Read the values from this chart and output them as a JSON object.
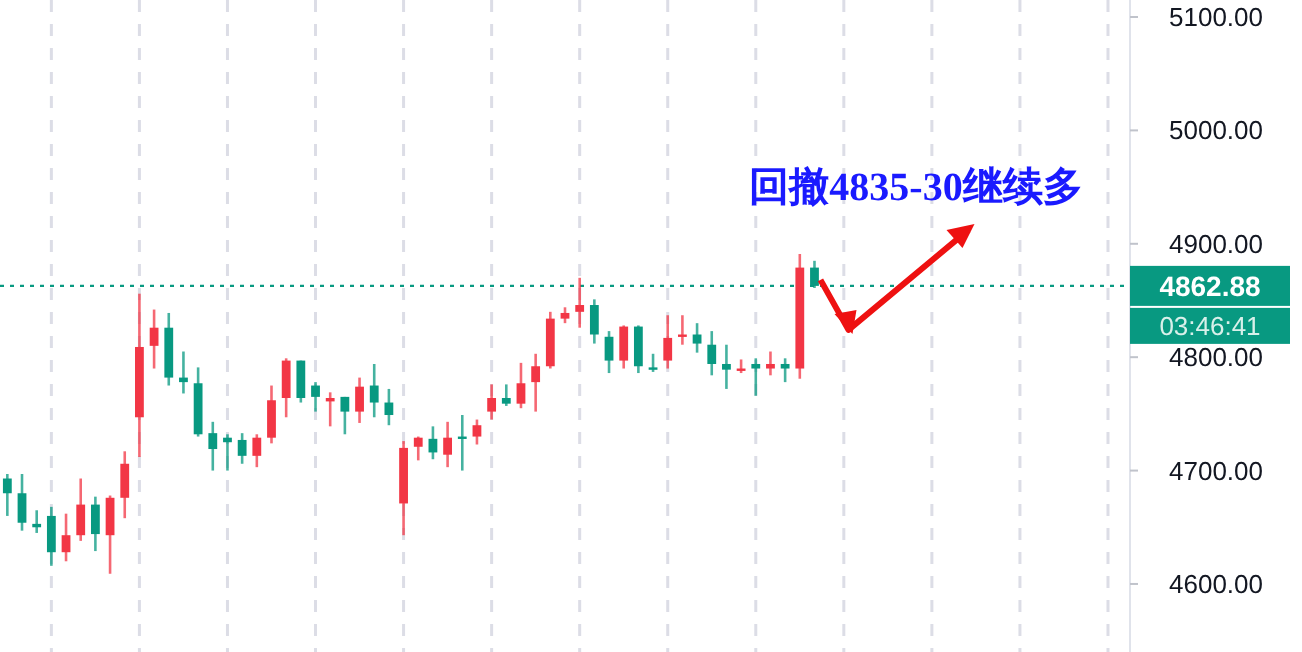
{
  "chart_data": {
    "type": "candlestick",
    "categories": [
      null,
      null,
      null,
      null,
      null,
      null,
      null,
      null,
      null,
      null,
      null,
      null,
      null,
      null,
      null,
      null,
      null,
      null,
      null,
      null,
      null,
      null,
      null,
      null,
      null,
      null,
      null,
      null,
      null,
      null,
      null,
      null,
      null,
      null,
      null,
      null,
      null,
      null,
      null,
      null,
      null,
      null,
      null,
      null,
      null,
      null,
      null,
      null,
      null,
      null,
      null,
      null,
      null,
      null,
      null,
      null,
      null,
      null,
      null,
      null,
      null,
      null,
      null,
      null,
      null,
      null,
      null,
      null,
      null,
      null,
      null,
      null,
      null,
      null,
      null,
      null,
      null
    ],
    "ohlc": [
      [
        4693,
        4697,
        4660,
        4680
      ],
      [
        4680,
        4697,
        4647,
        4654
      ],
      [
        4653,
        4665,
        4645,
        4650
      ],
      [
        4660,
        4668,
        4616,
        4628
      ],
      [
        4628,
        4662,
        4620,
        4643
      ],
      [
        4643,
        4693,
        4638,
        4670
      ],
      [
        4670,
        4677,
        4629,
        4644
      ],
      [
        4643,
        4678,
        4609,
        4676
      ],
      [
        4676,
        4717,
        4658,
        4706
      ],
      [
        4747,
        4856,
        4712,
        4809
      ],
      [
        4810,
        4842,
        4790,
        4826
      ],
      [
        4826,
        4839,
        4775,
        4782
      ],
      [
        4782,
        4805,
        4768,
        4778
      ],
      [
        4777,
        4791,
        4730,
        4732
      ],
      [
        4733,
        4743,
        4700,
        4719
      ],
      [
        4729,
        4732,
        4700,
        4725
      ],
      [
        4727,
        4733,
        4706,
        4713
      ],
      [
        4713,
        4732,
        4703,
        4729
      ],
      [
        4729,
        4775,
        4724,
        4762
      ],
      [
        4764,
        4799,
        4747,
        4797
      ],
      [
        4797,
        4797,
        4760,
        4764
      ],
      [
        4775,
        4778,
        4752,
        4765
      ],
      [
        4761,
        4769,
        4739,
        4764
      ],
      [
        4765,
        4765,
        4732,
        4752
      ],
      [
        4752,
        4782,
        4742,
        4774
      ],
      [
        4775,
        4794,
        4747,
        4760
      ],
      [
        4760,
        4772,
        4740,
        4749
      ],
      [
        4671,
        4726,
        4643,
        4720
      ],
      [
        4721,
        4730,
        4709,
        4729
      ],
      [
        4728,
        4739,
        4710,
        4716
      ],
      [
        4714,
        4743,
        4703,
        4729
      ],
      [
        4730,
        4749,
        4700,
        4728
      ],
      [
        4730,
        4745,
        4723,
        4740
      ],
      [
        4752,
        4776,
        4745,
        4764
      ],
      [
        4764,
        4776,
        4757,
        4759
      ],
      [
        4759,
        4795,
        4755,
        4777
      ],
      [
        4778,
        4803,
        4752,
        4792
      ],
      [
        4792,
        4840,
        4790,
        4834
      ],
      [
        4834,
        4844,
        4830,
        4839
      ],
      [
        4840,
        4870,
        4826,
        4846
      ],
      [
        4846,
        4851,
        4812,
        4820
      ],
      [
        4818,
        4823,
        4786,
        4797
      ],
      [
        4797,
        4828,
        4790,
        4827
      ],
      [
        4827,
        4828,
        4786,
        4792
      ],
      [
        4791,
        4803,
        4787,
        4789
      ],
      [
        4797,
        4837,
        4790,
        4817
      ],
      [
        4818,
        4837,
        4811,
        4820
      ],
      [
        4820,
        4830,
        4804,
        4812
      ],
      [
        4811,
        4823,
        4784,
        4794
      ],
      [
        4794,
        4811,
        4772,
        4789
      ],
      [
        4788,
        4798,
        4786,
        4790
      ],
      [
        4794,
        4799,
        4766,
        4790
      ],
      [
        4790,
        4805,
        4784,
        4794
      ],
      [
        4794,
        4799,
        4778,
        4790
      ],
      [
        4790,
        4891,
        4781,
        4879
      ],
      [
        4879,
        4885,
        4861,
        4862.88
      ],
      null,
      null,
      null,
      null,
      null,
      null,
      null,
      null,
      null,
      null,
      null,
      null,
      null,
      null,
      null,
      null,
      null,
      null,
      null,
      null,
      null
    ],
    "colors": [
      "#089981",
      "#089981",
      "#089981",
      "#089981",
      "#f23645",
      "#f23645",
      "#089981",
      "#f23645",
      "#f23645",
      "#f23645",
      "#f23645",
      "#089981",
      "#089981",
      "#089981",
      "#089981",
      "#089981",
      "#089981",
      "#f23645",
      "#f23645",
      "#f23645",
      "#089981",
      "#089981",
      "#f23645",
      "#089981",
      "#f23645",
      "#089981",
      "#089981",
      "#f23645",
      "#f23645",
      "#089981",
      "#f23645",
      "#089981",
      "#f23645",
      "#f23645",
      "#089981",
      "#f23645",
      "#f23645",
      "#f23645",
      "#f23645",
      "#f23645",
      "#089981",
      "#089981",
      "#f23645",
      "#089981",
      "#089981",
      "#f23645",
      "#f23645",
      "#089981",
      "#089981",
      "#089981",
      "#f23645",
      "#089981",
      "#f23645",
      "#089981",
      "#f23645",
      "#089981",
      null,
      null,
      null,
      null,
      null,
      null,
      null,
      null,
      null,
      null,
      null,
      null,
      null,
      null,
      null,
      null,
      null,
      null,
      null,
      null,
      null
    ],
    "ylim": [
      4540,
      5115
    ],
    "yticks": [
      {
        "value": 4600,
        "label": "4600.00"
      },
      {
        "value": 4700,
        "label": "4700.00"
      },
      {
        "value": 4800,
        "label": "4800.00"
      },
      {
        "value": 4900,
        "label": "4900.00"
      },
      {
        "value": 5000,
        "label": "5000.00"
      },
      {
        "value": 5100,
        "label": "5100.00"
      }
    ],
    "tick_labels": "y",
    "grid": "x",
    "ref_lines": [
      {
        "axis": "y",
        "value": 4862.88,
        "label": "4862.88",
        "color": "#089981",
        "line_style": "dotted"
      }
    ],
    "annotations": [
      "回撤4835-30继续多",
      "03:46:41"
    ]
  }
}
